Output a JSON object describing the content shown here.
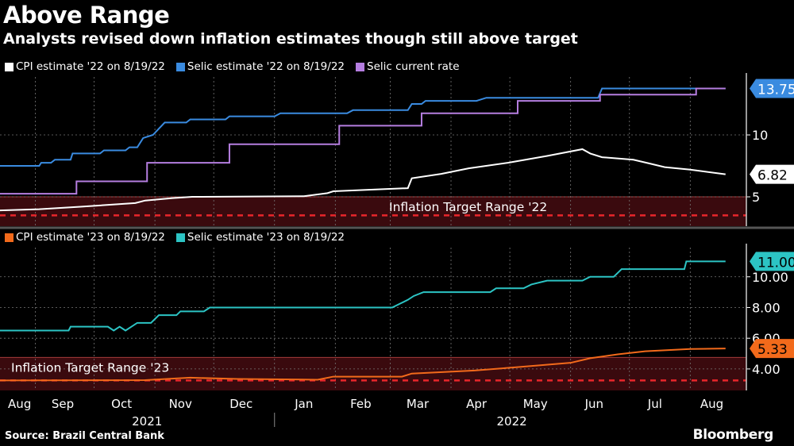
{
  "title": "Above Range",
  "subtitle": "Analysts revised down inflation estimates though still above target",
  "source": "Source: Brazil Central Bank",
  "logo": "Bloomberg",
  "chart_data": [
    {
      "type": "line",
      "xlim": [
        "2021-08-14",
        "2022-08-28"
      ],
      "ylim": [
        2.63,
        14.68
      ],
      "yticks": [
        {
          "value": 5,
          "label": "5"
        },
        {
          "value": 10,
          "label": "10"
        }
      ],
      "grid": true,
      "legend_placement": "top-left",
      "band": {
        "label": "Inflation Target Range '22",
        "low": 2,
        "high": 5,
        "target": 3.5,
        "color": "#3a0a0e",
        "edge": "#a33a3a",
        "target_color": "#e8262b"
      },
      "series": [
        {
          "name": "CPI estimate '22 on 8/19/22",
          "color": "#ffffff",
          "step": false,
          "last_label": "6.82",
          "label_text_color": "#000000",
          "points": [
            [
              "2021-08-14",
              3.9
            ],
            [
              "2021-09-03",
              4.0
            ],
            [
              "2021-09-24",
              4.2
            ],
            [
              "2021-10-22",
              4.5
            ],
            [
              "2021-10-27",
              4.7
            ],
            [
              "2021-11-10",
              4.9
            ],
            [
              "2021-11-20",
              5.0
            ],
            [
              "2022-01-16",
              5.05
            ],
            [
              "2022-01-28",
              5.3
            ],
            [
              "2022-01-31",
              5.45
            ],
            [
              "2022-03-10",
              5.7
            ],
            [
              "2022-03-12",
              6.5
            ],
            [
              "2022-03-27",
              6.85
            ],
            [
              "2022-04-10",
              7.3
            ],
            [
              "2022-04-30",
              7.75
            ],
            [
              "2022-05-20",
              8.3
            ],
            [
              "2022-06-07",
              8.85
            ],
            [
              "2022-06-11",
              8.5
            ],
            [
              "2022-06-17",
              8.2
            ],
            [
              "2022-07-03",
              8.0
            ],
            [
              "2022-07-11",
              7.7
            ],
            [
              "2022-07-19",
              7.4
            ],
            [
              "2022-08-01",
              7.2
            ],
            [
              "2022-08-19",
              6.82
            ]
          ]
        },
        {
          "name": "Selic estimate '22 on 8/19/22",
          "color": "#3a8be0",
          "step": false,
          "last_label": "13.75",
          "label_text_color": "#ffffff",
          "points": [
            [
              "2021-08-14",
              7.5
            ],
            [
              "2021-09-03",
              7.5
            ],
            [
              "2021-09-04",
              7.75
            ],
            [
              "2021-09-09",
              7.75
            ],
            [
              "2021-09-11",
              8.0
            ],
            [
              "2021-09-19",
              8.0
            ],
            [
              "2021-09-20",
              8.5
            ],
            [
              "2021-10-04",
              8.5
            ],
            [
              "2021-10-06",
              8.75
            ],
            [
              "2021-10-17",
              8.75
            ],
            [
              "2021-10-19",
              9.0
            ],
            [
              "2021-10-23",
              9.0
            ],
            [
              "2021-10-26",
              9.75
            ],
            [
              "2021-10-31",
              10.0
            ],
            [
              "2021-11-03",
              10.5
            ],
            [
              "2021-11-06",
              11.0
            ],
            [
              "2021-11-17",
              11.0
            ],
            [
              "2021-11-19",
              11.25
            ],
            [
              "2021-12-07",
              11.25
            ],
            [
              "2021-12-09",
              11.5
            ],
            [
              "2022-01-01",
              11.5
            ],
            [
              "2022-01-04",
              11.75
            ],
            [
              "2022-02-07",
              11.75
            ],
            [
              "2022-02-10",
              12.0
            ],
            [
              "2022-03-10",
              12.0
            ],
            [
              "2022-03-12",
              12.5
            ],
            [
              "2022-03-17",
              12.5
            ],
            [
              "2022-03-19",
              12.75
            ],
            [
              "2022-04-14",
              12.75
            ],
            [
              "2022-04-19",
              13.0
            ],
            [
              "2022-06-15",
              13.0
            ],
            [
              "2022-06-17",
              13.75
            ],
            [
              "2022-08-19",
              13.75
            ]
          ]
        },
        {
          "name": "Selic current rate",
          "color": "#b57ee0",
          "step": true,
          "points": [
            [
              "2021-08-14",
              5.25
            ],
            [
              "2021-09-22",
              6.25
            ],
            [
              "2021-10-28",
              7.75
            ],
            [
              "2021-12-09",
              9.25
            ],
            [
              "2022-02-03",
              10.75
            ],
            [
              "2022-03-17",
              11.75
            ],
            [
              "2022-05-05",
              12.75
            ],
            [
              "2022-06-16",
              13.25
            ],
            [
              "2022-08-04",
              13.75
            ],
            [
              "2022-08-19",
              13.75
            ]
          ]
        }
      ]
    },
    {
      "type": "line",
      "xlim": [
        "2021-08-14",
        "2022-08-28"
      ],
      "ylim": [
        2.6,
        11.9
      ],
      "yticks": [
        {
          "value": 4,
          "label": "4.00"
        },
        {
          "value": 6,
          "label": "6.00"
        },
        {
          "value": 8,
          "label": "8.00"
        },
        {
          "value": 10,
          "label": "10.00"
        }
      ],
      "grid": true,
      "legend_placement": "top-left",
      "band": {
        "label": "Inflation Target Range '23",
        "low": 1.75,
        "high": 4.75,
        "target": 3.25,
        "color": "#3a0a0e",
        "edge": "#a33a3a",
        "target_color": "#e8262b"
      },
      "series": [
        {
          "name": "CPI estimate '23 on 8/19/22",
          "color": "#f26a1b",
          "step": false,
          "last_label": "5.33",
          "label_text_color": "#000000",
          "points": [
            [
              "2021-08-14",
              3.25
            ],
            [
              "2021-10-27",
              3.27
            ],
            [
              "2021-11-19",
              3.43
            ],
            [
              "2021-12-13",
              3.35
            ],
            [
              "2022-01-23",
              3.3
            ],
            [
              "2022-01-31",
              3.5
            ],
            [
              "2022-03-07",
              3.5
            ],
            [
              "2022-03-12",
              3.7
            ],
            [
              "2022-04-13",
              3.9
            ],
            [
              "2022-05-03",
              4.1
            ],
            [
              "2022-06-01",
              4.4
            ],
            [
              "2022-06-11",
              4.7
            ],
            [
              "2022-06-25",
              4.95
            ],
            [
              "2022-07-09",
              5.15
            ],
            [
              "2022-08-01",
              5.3
            ],
            [
              "2022-08-19",
              5.33
            ]
          ]
        },
        {
          "name": "Selic estimate '23 on 8/19/22",
          "color": "#2cc4c4",
          "step": false,
          "last_label": "11.00",
          "label_text_color": "#000000",
          "points": [
            [
              "2021-08-14",
              6.5
            ],
            [
              "2021-09-18",
              6.5
            ],
            [
              "2021-09-19",
              6.75
            ],
            [
              "2021-10-08",
              6.75
            ],
            [
              "2021-10-11",
              6.5
            ],
            [
              "2021-10-14",
              6.75
            ],
            [
              "2021-10-17",
              6.5
            ],
            [
              "2021-10-20",
              6.75
            ],
            [
              "2021-10-23",
              7.0
            ],
            [
              "2021-10-30",
              7.0
            ],
            [
              "2021-11-03",
              7.5
            ],
            [
              "2021-11-12",
              7.5
            ],
            [
              "2021-11-14",
              7.75
            ],
            [
              "2021-11-26",
              7.75
            ],
            [
              "2021-11-29",
              8.0
            ],
            [
              "2022-03-02",
              8.0
            ],
            [
              "2022-03-06",
              8.25
            ],
            [
              "2022-03-10",
              8.5
            ],
            [
              "2022-03-13",
              8.75
            ],
            [
              "2022-03-18",
              9.0
            ],
            [
              "2022-04-21",
              9.0
            ],
            [
              "2022-04-24",
              9.25
            ],
            [
              "2022-05-08",
              9.25
            ],
            [
              "2022-05-12",
              9.5
            ],
            [
              "2022-05-20",
              9.75
            ],
            [
              "2022-06-07",
              9.75
            ],
            [
              "2022-06-11",
              10.0
            ],
            [
              "2022-06-23",
              10.0
            ],
            [
              "2022-06-25",
              10.25
            ],
            [
              "2022-06-27",
              10.5
            ],
            [
              "2022-07-29",
              10.5
            ],
            [
              "2022-07-30",
              11.0
            ],
            [
              "2022-08-19",
              11.0
            ]
          ]
        }
      ]
    }
  ],
  "x_axis": {
    "months": [
      [
        "Aug",
        "2021-08-24"
      ],
      [
        "Sep",
        "2021-09-15"
      ],
      [
        "Oct",
        "2021-10-15"
      ],
      [
        "Nov",
        "2021-11-14"
      ],
      [
        "Dec",
        "2021-12-15"
      ],
      [
        "Jan",
        "2022-01-16"
      ],
      [
        "Feb",
        "2022-02-14"
      ],
      [
        "Mar",
        "2022-03-15"
      ],
      [
        "Apr",
        "2022-04-14"
      ],
      [
        "May",
        "2022-05-14"
      ],
      [
        "Jun",
        "2022-06-13"
      ],
      [
        "Jul",
        "2022-07-14"
      ],
      [
        "Aug",
        "2022-08-12"
      ]
    ],
    "years": [
      [
        "2021",
        "2021-10-28"
      ],
      [
        "2022",
        "2022-05-02"
      ]
    ],
    "year_boundary": "2022-01-01"
  }
}
